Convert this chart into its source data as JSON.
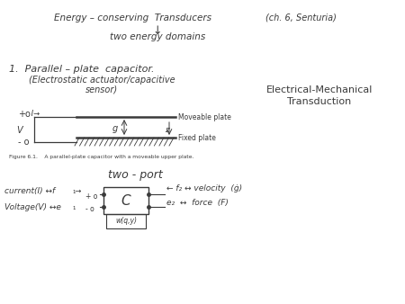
{
  "bg_color": "#ffffff",
  "text_color": "#3a3a3a",
  "sidebar_line1": "Electrical-Mechanical",
  "sidebar_line2": "Transduction",
  "fig_caption": "Figure 6.1.    A parallel-plate capacitor with a moveable upper plate."
}
